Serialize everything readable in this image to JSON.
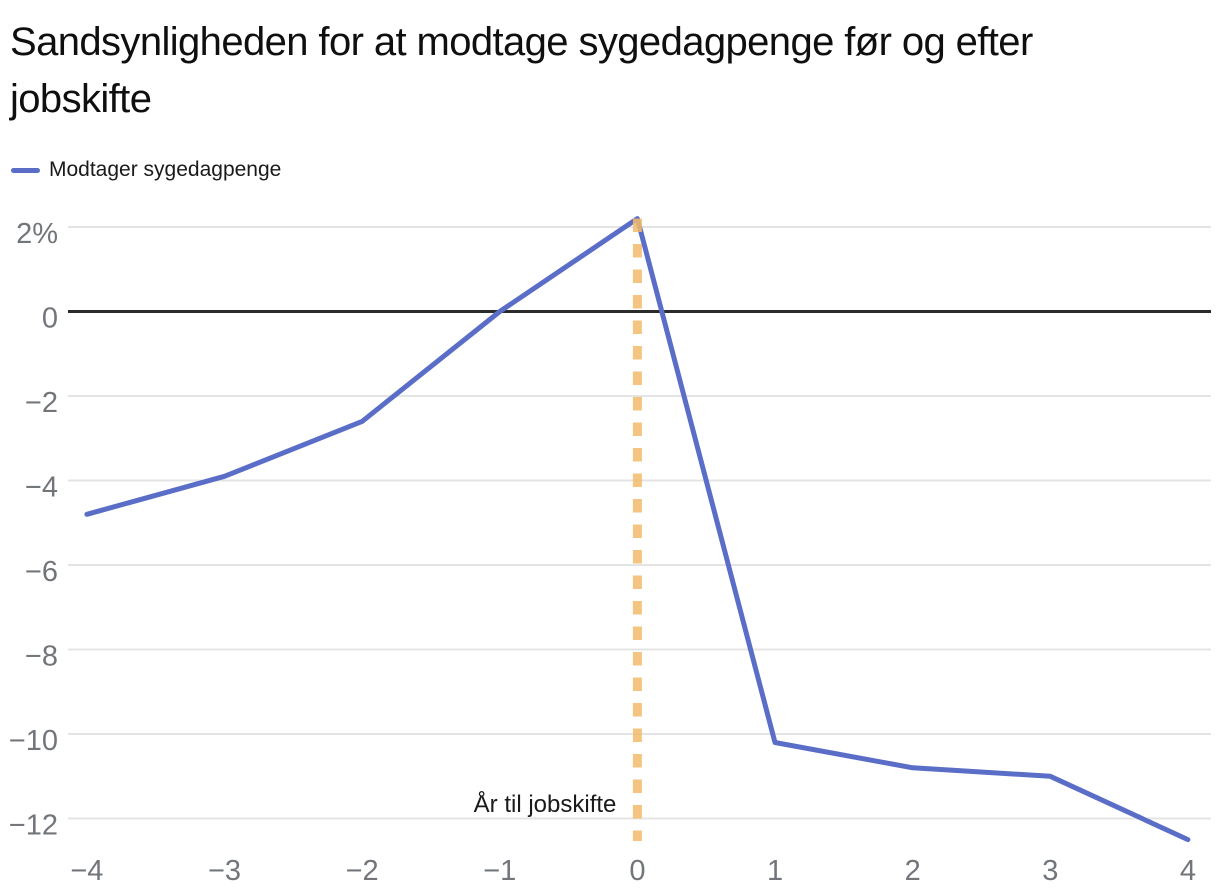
{
  "title": "Sandsynligheden for at modtage sygedagpenge før og efter jobskifte",
  "title_lines": {
    "line1": "Sandsynligheden for at modtage sygedagpenge før og efter",
    "line2": "jobskifte"
  },
  "legend": {
    "label": "Modtager sygedagpenge"
  },
  "colors": {
    "series": "#5a6ec8",
    "event_line": "#f3bb6b",
    "grid": "#e4e4e4",
    "zero_line": "#2b2b2b",
    "tick_text": "#72767b",
    "title_text": "#0f0f0f",
    "label_text": "#1a1a1a",
    "background": "#ffffff"
  },
  "chart_data": {
    "type": "line",
    "title": "Sandsynligheden for at modtage sygedagpenge før og efter jobskifte",
    "x": [
      -4,
      -3,
      -2,
      -1,
      0,
      1,
      2,
      3,
      4
    ],
    "series": [
      {
        "name": "Modtager sygedagpenge",
        "color": "#5a6ec8",
        "values": [
          -4.8,
          -3.9,
          -2.6,
          0.0,
          2.2,
          -10.2,
          -10.8,
          -11.0,
          -12.5
        ]
      }
    ],
    "x_tick_labels": [
      "−4",
      "−3",
      "−2",
      "−1",
      "0",
      "1",
      "2",
      "3",
      "4"
    ],
    "y_ticks": [
      {
        "v": 2,
        "label": "2%"
      },
      {
        "v": 0,
        "label": "0"
      },
      {
        "v": -2,
        "label": "−2"
      },
      {
        "v": -4,
        "label": "−4"
      },
      {
        "v": -6,
        "label": "−6"
      },
      {
        "v": -8,
        "label": "−8"
      },
      {
        "v": -10,
        "label": "−10"
      },
      {
        "v": -12,
        "label": "−12"
      }
    ],
    "xlim": [
      -4,
      4
    ],
    "ylim": [
      -12.6,
      2.4
    ],
    "unit": "%",
    "grid": "horizontal",
    "legend_position": "top-left",
    "event_line_x": 0,
    "event_line_style": "dashed",
    "annotation": "År til jobskifte",
    "xlabel": "",
    "ylabel": ""
  }
}
